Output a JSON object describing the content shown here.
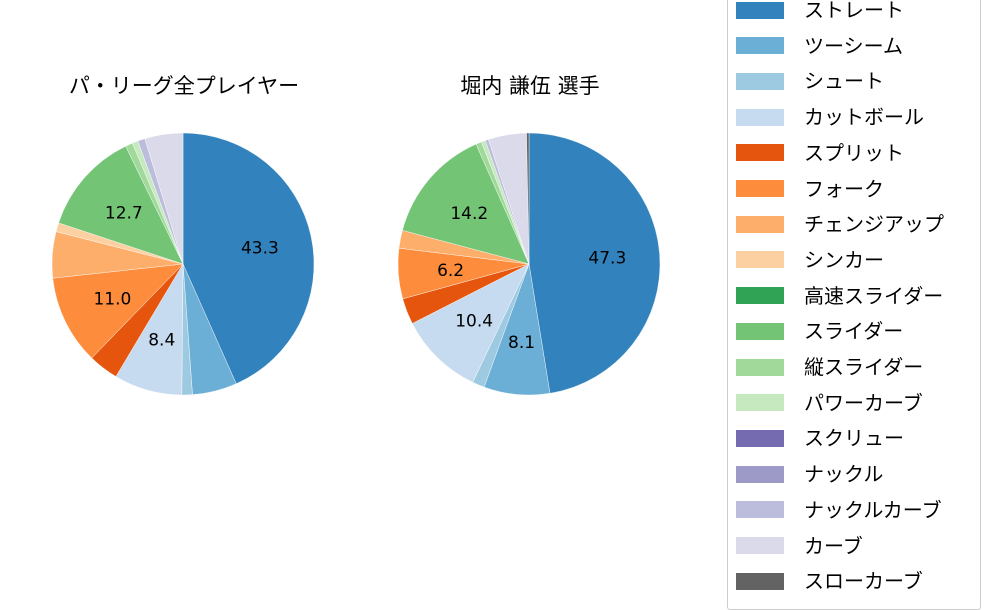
{
  "chart_data": [
    {
      "type": "pie",
      "title": "パ・リーグ全プレイヤー",
      "center": [
        183,
        264
      ],
      "radius": 131,
      "startangle": 90,
      "direction": "clockwise",
      "slices": [
        {
          "label": "ストレート",
          "value": 43.3,
          "shown_label": "43.3"
        },
        {
          "label": "ツーシーム",
          "value": 5.5,
          "shown_label": ""
        },
        {
          "label": "シュート",
          "value": 1.3,
          "shown_label": ""
        },
        {
          "label": "カットボール",
          "value": 8.4,
          "shown_label": "8.4"
        },
        {
          "label": "スプリット",
          "value": 3.7,
          "shown_label": ""
        },
        {
          "label": "フォーク",
          "value": 11.0,
          "shown_label": "11.0"
        },
        {
          "label": "チェンジアップ",
          "value": 5.7,
          "shown_label": ""
        },
        {
          "label": "シンカー",
          "value": 1.1,
          "shown_label": ""
        },
        {
          "label": "高速スライダー",
          "value": 0.0,
          "shown_label": ""
        },
        {
          "label": "スライダー",
          "value": 12.7,
          "shown_label": "12.7"
        },
        {
          "label": "縦スライダー",
          "value": 0.9,
          "shown_label": ""
        },
        {
          "label": "パワーカーブ",
          "value": 0.7,
          "shown_label": ""
        },
        {
          "label": "スクリュー",
          "value": 0.0,
          "shown_label": ""
        },
        {
          "label": "ナックル",
          "value": 0.0,
          "shown_label": ""
        },
        {
          "label": "ナックルカーブ",
          "value": 0.9,
          "shown_label": ""
        },
        {
          "label": "カーブ",
          "value": 4.7,
          "shown_label": ""
        },
        {
          "label": "スローカーブ",
          "value": 0.0,
          "shown_label": ""
        }
      ]
    },
    {
      "type": "pie",
      "title": "堀内 謙伍  選手",
      "center": [
        529,
        264
      ],
      "radius": 131,
      "startangle": 90,
      "direction": "clockwise",
      "slices": [
        {
          "label": "ストレート",
          "value": 47.3,
          "shown_label": "47.3"
        },
        {
          "label": "ツーシーム",
          "value": 8.1,
          "shown_label": "8.1"
        },
        {
          "label": "シュート",
          "value": 1.5,
          "shown_label": ""
        },
        {
          "label": "カットボール",
          "value": 10.4,
          "shown_label": "10.4"
        },
        {
          "label": "スプリット",
          "value": 3.2,
          "shown_label": ""
        },
        {
          "label": "フォーク",
          "value": 6.2,
          "shown_label": "6.2"
        },
        {
          "label": "チェンジアップ",
          "value": 2.2,
          "shown_label": ""
        },
        {
          "label": "シンカー",
          "value": 0.0,
          "shown_label": ""
        },
        {
          "label": "高速スライダー",
          "value": 0.0,
          "shown_label": ""
        },
        {
          "label": "スライダー",
          "value": 14.2,
          "shown_label": "14.2"
        },
        {
          "label": "縦スライダー",
          "value": 0.7,
          "shown_label": ""
        },
        {
          "label": "パワーカーブ",
          "value": 0.5,
          "shown_label": ""
        },
        {
          "label": "スクリュー",
          "value": 0.0,
          "shown_label": ""
        },
        {
          "label": "ナックル",
          "value": 0.0,
          "shown_label": ""
        },
        {
          "label": "ナックルカーブ",
          "value": 0.4,
          "shown_label": ""
        },
        {
          "label": "カーブ",
          "value": 4.7,
          "shown_label": ""
        },
        {
          "label": "スローカーブ",
          "value": 0.3,
          "shown_label": ""
        }
      ]
    }
  ],
  "legend": {
    "items": [
      {
        "label": "ストレート",
        "color": "#3182bd"
      },
      {
        "label": "ツーシーム",
        "color": "#6baed6"
      },
      {
        "label": "シュート",
        "color": "#9ecae1"
      },
      {
        "label": "カットボール",
        "color": "#c6dbef"
      },
      {
        "label": "スプリット",
        "color": "#e6550d"
      },
      {
        "label": "フォーク",
        "color": "#fd8d3c"
      },
      {
        "label": "チェンジアップ",
        "color": "#fdae6b"
      },
      {
        "label": "シンカー",
        "color": "#fdd0a2"
      },
      {
        "label": "高速スライダー",
        "color": "#31a354"
      },
      {
        "label": "スライダー",
        "color": "#74c476"
      },
      {
        "label": "縦スライダー",
        "color": "#a1d99b"
      },
      {
        "label": "パワーカーブ",
        "color": "#c7e9c0"
      },
      {
        "label": "スクリュー",
        "color": "#756bb1"
      },
      {
        "label": "ナックル",
        "color": "#9e9ac8"
      },
      {
        "label": "ナックルカーブ",
        "color": "#bcbddc"
      },
      {
        "label": "カーブ",
        "color": "#dadaeb"
      },
      {
        "label": "スローカーブ",
        "color": "#636363"
      }
    ]
  }
}
